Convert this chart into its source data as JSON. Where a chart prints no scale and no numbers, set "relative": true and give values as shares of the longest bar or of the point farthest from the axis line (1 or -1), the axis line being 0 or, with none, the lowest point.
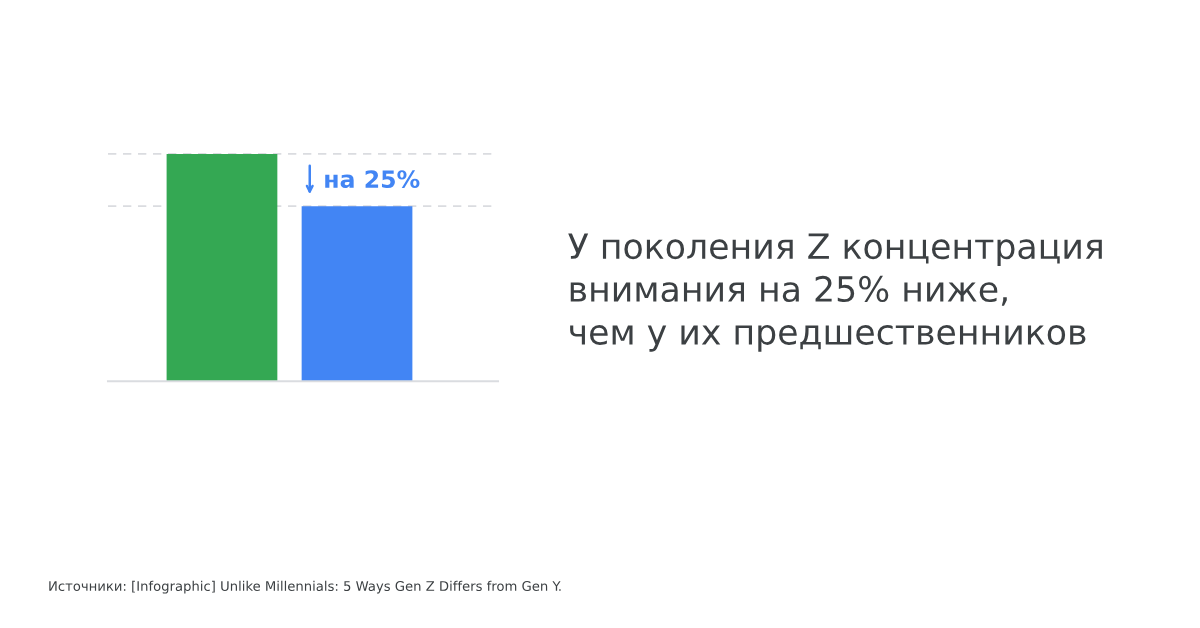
{
  "chart_data": {
    "type": "bar",
    "relative": true,
    "title": "У поколения Z концентрация\nвнимания на 25% ниже,\nчем у их предшественников",
    "categories": [
      null,
      null
    ],
    "values": [
      1,
      0.77
    ],
    "colors": [
      "#34a853",
      "#4285f4"
    ],
    "ref_lines": [
      {
        "axis": "y",
        "value": 1,
        "color": "#dadce0",
        "line_style": "dashed"
      },
      {
        "axis": "y",
        "value": 0.77,
        "color": "#dadce0",
        "line_style": "dashed"
      }
    ],
    "annotations": [
      {
        "text": "на 25%",
        "y": 0.77
      },
      "Источники: [Infographic] Unlike Millennials: 5 Ways Gen Z Differs from Gen Y."
    ],
    "grid": false,
    "legend": false
  }
}
